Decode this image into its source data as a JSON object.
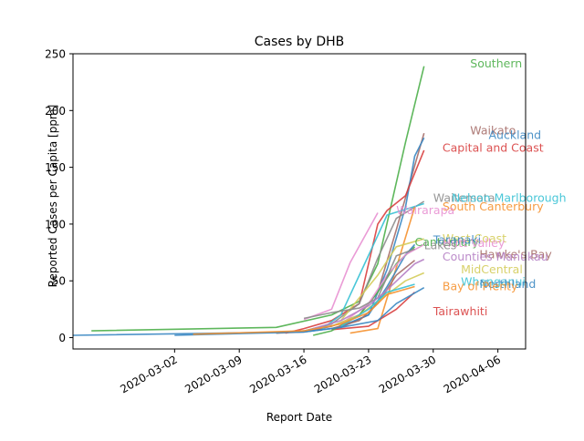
{
  "chart_data": {
    "type": "line",
    "title": "Cases by DHB",
    "xlabel": "Report Date",
    "ylabel": "Reported Cases per Capita [ppm]",
    "xlim": [
      "2020-02-20",
      "2020-04-09"
    ],
    "ylim": [
      -10,
      250
    ],
    "xticks": [
      "2020-03-02",
      "2020-03-09",
      "2020-03-16",
      "2020-03-23",
      "2020-03-30",
      "2020-04-06"
    ],
    "yticks": [
      0,
      50,
      100,
      150,
      200,
      250
    ],
    "grid": false,
    "series": [
      {
        "name": "Southern",
        "color": "#4daf4a",
        "label_pos": [
          "2020-04-03",
          241
        ],
        "points": [
          [
            "2020-02-22",
            6
          ],
          [
            "2020-03-13",
            9
          ],
          [
            "2020-03-19",
            20
          ],
          [
            "2020-03-22",
            32
          ],
          [
            "2020-03-24",
            65
          ],
          [
            "2020-03-27",
            172
          ],
          [
            "2020-03-29",
            239
          ]
        ]
      },
      {
        "name": "Waikato",
        "color": "#a56d68",
        "label_pos": [
          "2020-04-03",
          182
        ],
        "points": [
          [
            "2020-03-13",
            4
          ],
          [
            "2020-03-16",
            5
          ],
          [
            "2020-03-19",
            10
          ],
          [
            "2020-03-22",
            20
          ],
          [
            "2020-03-24",
            40
          ],
          [
            "2020-03-26",
            95
          ],
          [
            "2020-03-29",
            180
          ]
        ]
      },
      {
        "name": "Auckland",
        "color": "#3a87c2",
        "label_pos": [
          "2020-04-05",
          178
        ],
        "points": [
          [
            "2020-02-20",
            2
          ],
          [
            "2020-03-16",
            5
          ],
          [
            "2020-03-20",
            9
          ],
          [
            "2020-03-23",
            20
          ],
          [
            "2020-03-25",
            60
          ],
          [
            "2020-03-27",
            115
          ],
          [
            "2020-03-28",
            160
          ],
          [
            "2020-03-29",
            176
          ]
        ]
      },
      {
        "name": "Capital and Coast",
        "color": "#d83f3f",
        "label_pos": [
          "2020-03-31",
          167
        ],
        "points": [
          [
            "2020-03-14",
            4
          ],
          [
            "2020-03-16",
            8
          ],
          [
            "2020-03-19",
            15
          ],
          [
            "2020-03-22",
            30
          ],
          [
            "2020-03-24",
            100
          ],
          [
            "2020-03-25",
            112
          ],
          [
            "2020-03-27",
            125
          ],
          [
            "2020-03-29",
            165
          ]
        ]
      },
      {
        "name": "Waitemata",
        "color": "#8c8c8c",
        "label_pos": [
          "2020-03-30",
          123
        ],
        "points": [
          [
            "2020-03-13",
            4
          ],
          [
            "2020-03-16",
            6
          ],
          [
            "2020-03-19",
            12
          ],
          [
            "2020-03-22",
            30
          ],
          [
            "2020-03-24",
            70
          ],
          [
            "2020-03-26",
            105
          ],
          [
            "2020-03-29",
            120
          ]
        ]
      },
      {
        "name": "Nelson Marlborough",
        "color": "#36c1d4",
        "label_pos": [
          "2020-04-01",
          123
        ],
        "points": [
          [
            "2020-03-18",
            8
          ],
          [
            "2020-03-20",
            20
          ],
          [
            "2020-03-22",
            55
          ],
          [
            "2020-03-24",
            90
          ],
          [
            "2020-03-25",
            108
          ],
          [
            "2020-03-29",
            118
          ]
        ]
      },
      {
        "name": "South Canterbury",
        "color": "#f5912f",
        "label_pos": [
          "2020-03-31",
          115
        ],
        "points": [
          [
            "2020-03-21",
            4
          ],
          [
            "2020-03-24",
            8
          ],
          [
            "2020-03-28",
            115
          ]
        ]
      },
      {
        "name": "Wairarapa",
        "color": "#e890d2",
        "label_pos": [
          "2020-03-26",
          112
        ],
        "points": [
          [
            "2020-03-16",
            16
          ],
          [
            "2020-03-19",
            25
          ],
          [
            "2020-03-21",
            66
          ],
          [
            "2020-03-24",
            110
          ]
        ]
      },
      {
        "name": "West Coast",
        "color": "#d4cc5a",
        "label_pos": [
          "2020-03-31",
          87
        ],
        "points": [
          [
            "2020-03-20",
            15
          ],
          [
            "2020-03-22",
            35
          ],
          [
            "2020-03-24",
            55
          ],
          [
            "2020-03-26",
            80
          ],
          [
            "2020-03-29",
            87
          ]
        ]
      },
      {
        "name": "Tairawhiti",
        "color": "#d83f3f",
        "label_pos": [
          "2020-03-30",
          23
        ],
        "points": [
          [
            "2020-03-19",
            7
          ],
          [
            "2020-03-23",
            10
          ],
          [
            "2020-03-26",
            25
          ],
          [
            "2020-03-28",
            40
          ]
        ]
      },
      {
        "name": "Canterbury",
        "color": "#4daf4a",
        "label_pos": [
          "2020-03-28",
          84
        ],
        "points": [
          [
            "2020-03-17",
            2
          ],
          [
            "2020-03-19",
            6
          ],
          [
            "2020-03-22",
            20
          ],
          [
            "2020-03-24",
            40
          ],
          [
            "2020-03-26",
            65
          ],
          [
            "2020-03-28",
            80
          ]
        ]
      },
      {
        "name": "Taranaki",
        "color": "#3a87c2",
        "label_pos": [
          "2020-03-30",
          86
        ],
        "points": [
          [
            "2020-03-20",
            10
          ],
          [
            "2020-03-23",
            20
          ],
          [
            "2020-03-25",
            45
          ],
          [
            "2020-03-27",
            73
          ],
          [
            "2020-03-28",
            82
          ]
        ]
      },
      {
        "name": "Hutt Valley",
        "color": "#e890d2",
        "label_pos": [
          "2020-03-31",
          83
        ],
        "points": [
          [
            "2020-03-20",
            12
          ],
          [
            "2020-03-23",
            30
          ],
          [
            "2020-03-25",
            55
          ],
          [
            "2020-03-27",
            73
          ],
          [
            "2020-03-29",
            82
          ]
        ]
      },
      {
        "name": "Lakes",
        "color": "#8c8c8c",
        "label_pos": [
          "2020-03-29",
          81
        ],
        "points": [
          [
            "2020-03-16",
            17
          ],
          [
            "2020-03-19",
            22
          ],
          [
            "2020-03-22",
            26
          ],
          [
            "2020-03-24",
            35
          ],
          [
            "2020-03-26",
            72
          ],
          [
            "2020-03-28",
            78
          ]
        ]
      },
      {
        "name": "Hawke's Bay",
        "color": "#a56d68",
        "label_pos": [
          "2020-04-04",
          73
        ],
        "points": [
          [
            "2020-03-19",
            8
          ],
          [
            "2020-03-22",
            15
          ],
          [
            "2020-03-24",
            30
          ],
          [
            "2020-03-26",
            55
          ],
          [
            "2020-03-28",
            68
          ]
        ]
      },
      {
        "name": "Counties Manukau",
        "color": "#b57fc4",
        "label_pos": [
          "2020-03-31",
          71
        ],
        "points": [
          [
            "2020-03-17",
            8
          ],
          [
            "2020-03-20",
            15
          ],
          [
            "2020-03-23",
            28
          ],
          [
            "2020-03-25",
            42
          ],
          [
            "2020-03-28",
            65
          ],
          [
            "2020-03-29",
            69
          ]
        ]
      },
      {
        "name": "MidCentral",
        "color": "#d4cc5a",
        "label_pos": [
          "2020-04-02",
          60
        ],
        "points": [
          [
            "2020-03-19",
            10
          ],
          [
            "2020-03-22",
            20
          ],
          [
            "2020-03-25",
            38
          ],
          [
            "2020-03-27",
            50
          ],
          [
            "2020-03-29",
            57
          ]
        ]
      },
      {
        "name": "Whanganui",
        "color": "#36c1d4",
        "label_pos": [
          "2020-04-02",
          49
        ],
        "points": [
          [
            "2020-03-20",
            10
          ],
          [
            "2020-03-23",
            25
          ],
          [
            "2020-03-25",
            40
          ],
          [
            "2020-03-28",
            47
          ]
        ]
      },
      {
        "name": "Northland",
        "color": "#3a87c2",
        "label_pos": [
          "2020-04-04",
          47
        ],
        "points": [
          [
            "2020-03-02",
            2
          ],
          [
            "2020-03-16",
            5
          ],
          [
            "2020-03-20",
            9
          ],
          [
            "2020-03-24",
            15
          ],
          [
            "2020-03-26",
            30
          ],
          [
            "2020-03-29",
            44
          ]
        ]
      },
      {
        "name": "Bay of Plenty",
        "color": "#f5912f",
        "label_pos": [
          "2020-03-31",
          45
        ],
        "points": [
          [
            "2020-03-04",
            3
          ],
          [
            "2020-03-16",
            6
          ],
          [
            "2020-03-20",
            12
          ],
          [
            "2020-03-23",
            22
          ],
          [
            "2020-03-25",
            38
          ],
          [
            "2020-03-28",
            45
          ]
        ]
      }
    ]
  }
}
